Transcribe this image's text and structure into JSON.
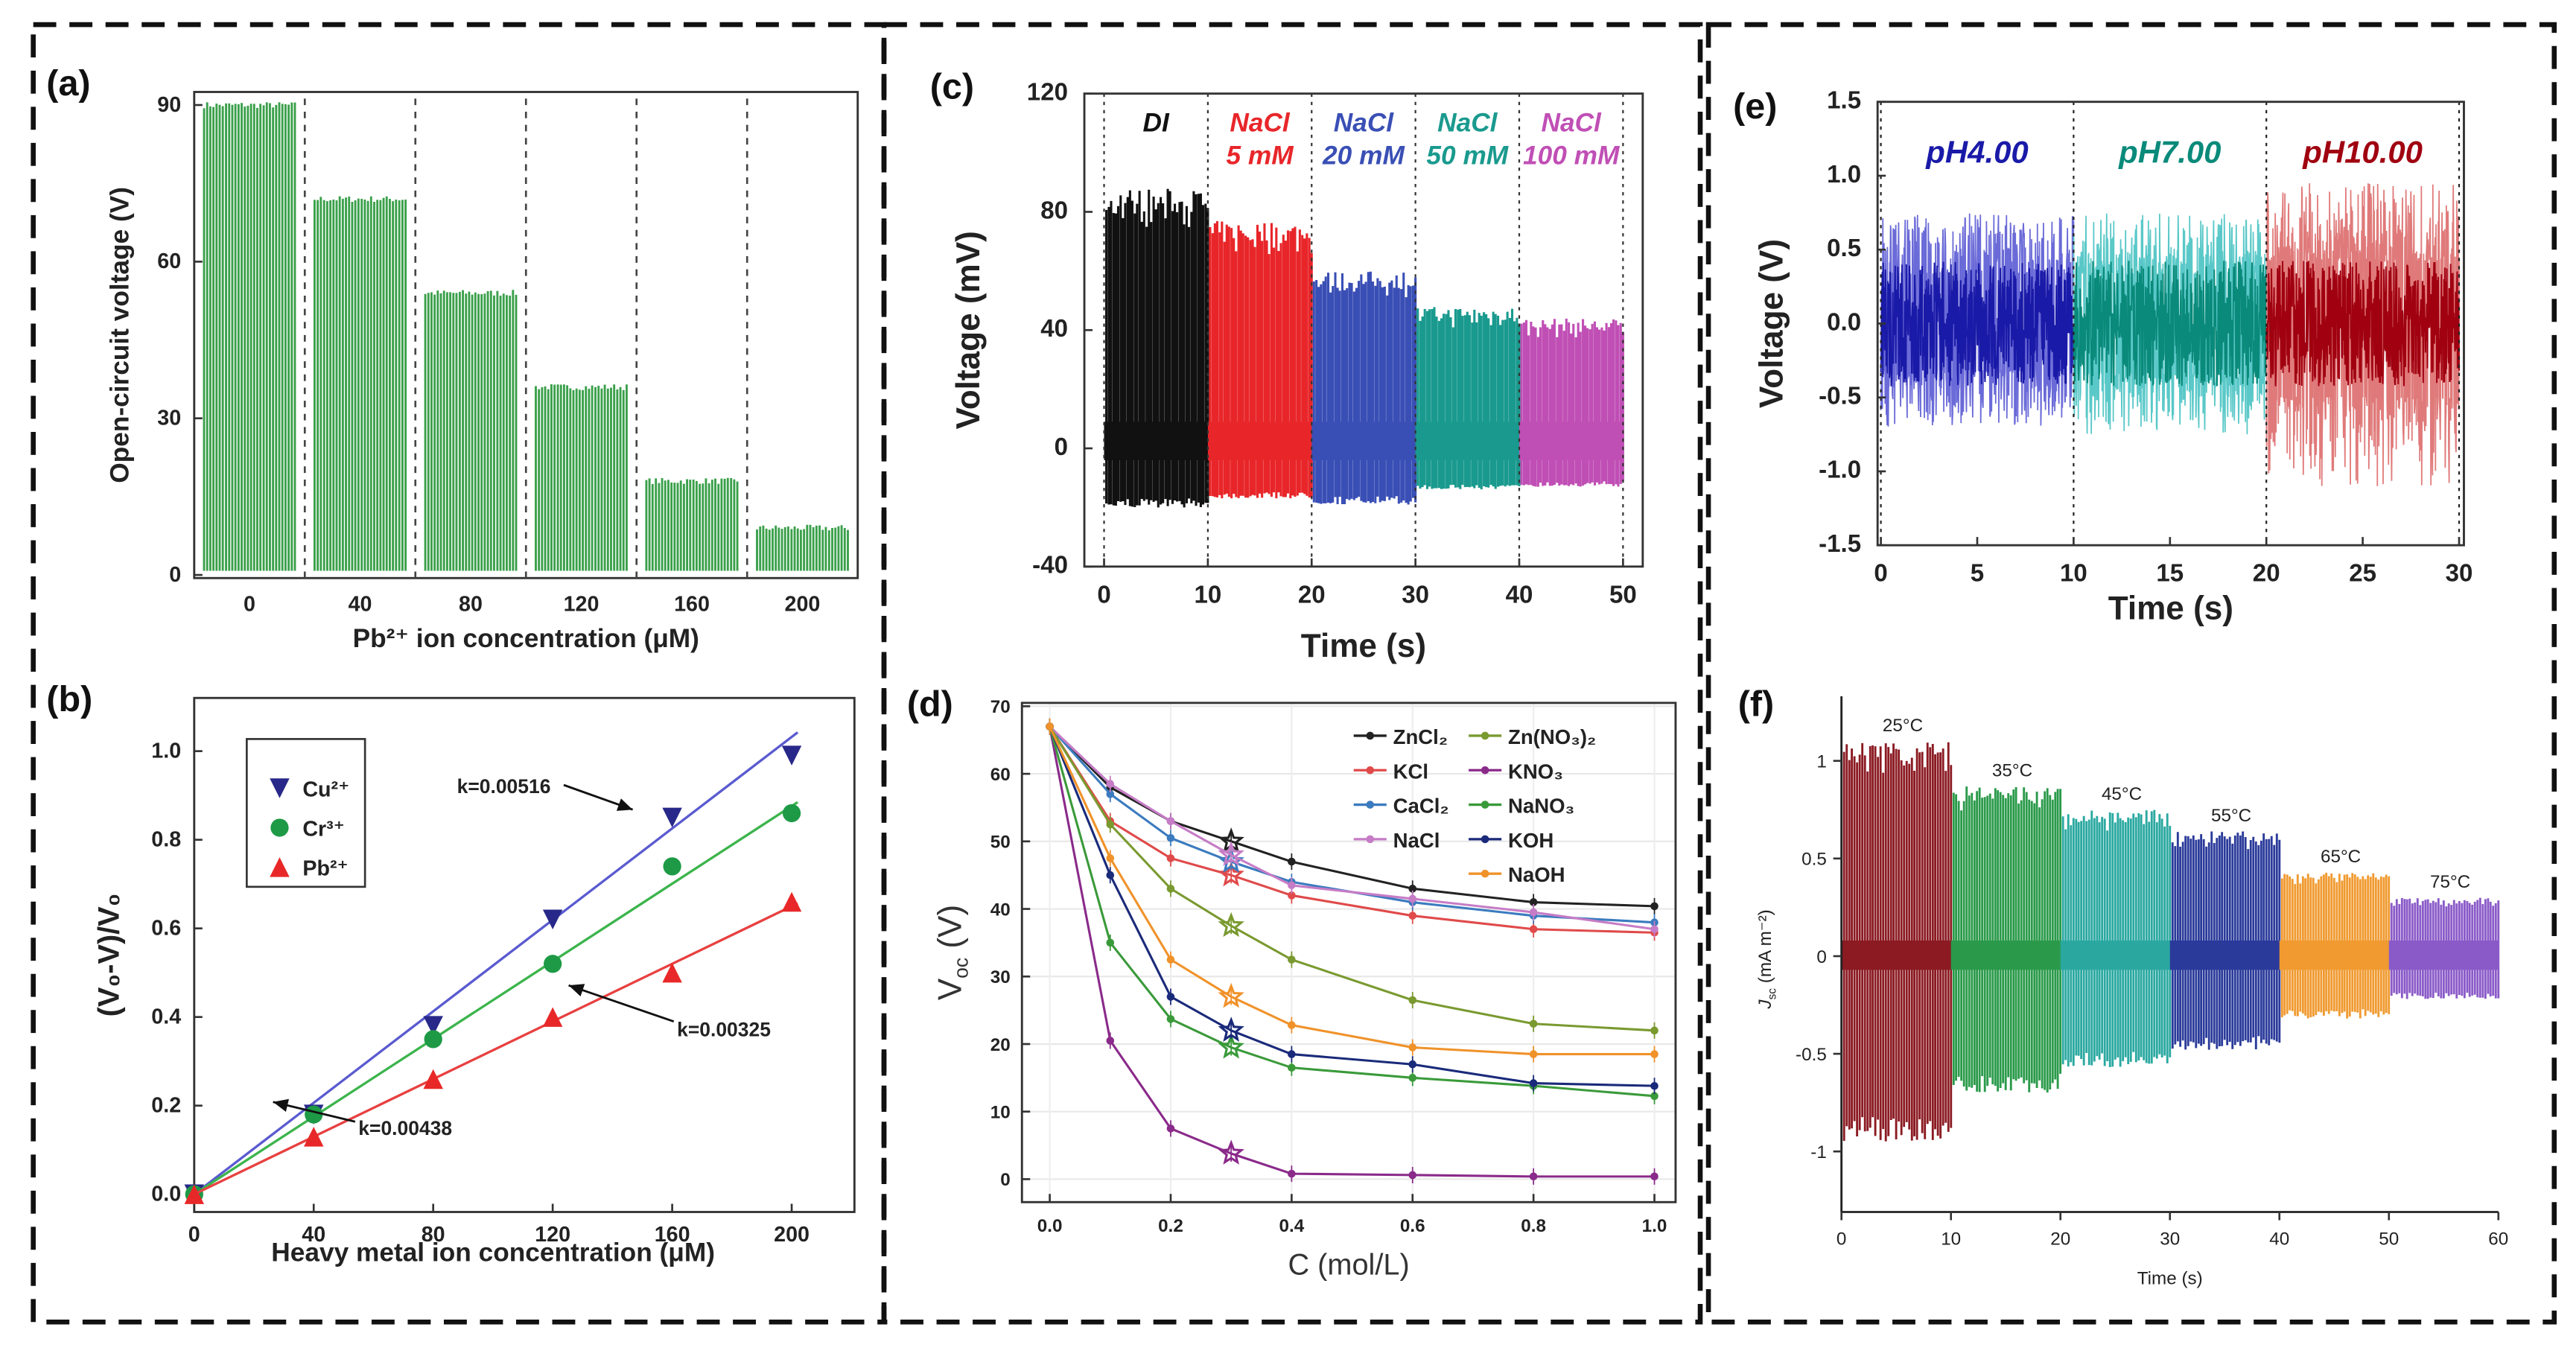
{
  "chart_data": [
    {
      "panel": "(a)",
      "type": "bar",
      "categories": [
        "0",
        "40",
        "80",
        "120",
        "160",
        "200"
      ],
      "values": [
        90,
        72,
        54,
        36,
        18,
        9
      ],
      "xlabel": "Pb²⁺ ion concentration (μM)",
      "ylabel": "Open-circuit voltage (V)",
      "yticks": [
        "0",
        "30",
        "60",
        "90"
      ],
      "ytick_values": [
        0,
        30,
        60,
        90
      ],
      "ylim": [
        -0.6,
        92.5
      ],
      "color": "#3aa04a"
    },
    {
      "panel": "(b)",
      "type": "scatter",
      "x": [
        0,
        40,
        80,
        120,
        160,
        200
      ],
      "series": [
        {
          "name": "Cu²⁺",
          "values": [
            0,
            0.18,
            0.38,
            0.62,
            0.85,
            0.99
          ],
          "fit_slope": 0.00516,
          "marker": "triangle-down",
          "color": "#28288a",
          "line_color": "#5a5ad0"
        },
        {
          "name": "Cr³⁺",
          "values": [
            0,
            0.18,
            0.35,
            0.52,
            0.74,
            0.86
          ],
          "fit_slope": 0.00438,
          "marker": "circle",
          "color": "#1e9a46",
          "line_color": "#3cb44c"
        },
        {
          "name": "Pb²⁺",
          "values": [
            0,
            0.13,
            0.26,
            0.4,
            0.5,
            0.66
          ],
          "fit_slope": 0.00325,
          "marker": "triangle-up",
          "color": "#e82828",
          "line_color": "#e84040"
        }
      ],
      "annotations": [
        "k=0.00516",
        "k=0.00325",
        "k=0.00438"
      ],
      "xlabel": "Heavy metal ion concentration (μM)",
      "ylabel": "(V₀-V)/V₀",
      "xticks": [
        "0",
        "40",
        "80",
        "120",
        "160",
        "200"
      ],
      "xtick_values": [
        0,
        40,
        80,
        120,
        160,
        200
      ],
      "yticks": [
        "0.0",
        "0.2",
        "0.4",
        "0.6",
        "0.8",
        "1.0"
      ],
      "ytick_values": [
        0,
        0.2,
        0.4,
        0.6,
        0.8,
        1.0
      ],
      "xlim": [
        0,
        221
      ],
      "ylim": [
        -0.04,
        1.12
      ],
      "legend": "top-left"
    },
    {
      "panel": "(c)",
      "type": "line",
      "xlabel": "Time (s)",
      "ylabel": "Voltage (mV)",
      "xticks": [
        "0",
        "10",
        "20",
        "30",
        "40",
        "50"
      ],
      "xtick_values": [
        0,
        10,
        20,
        30,
        40,
        50
      ],
      "yticks": [
        "-40",
        "0",
        "40",
        "80",
        "120"
      ],
      "ytick_values": [
        -40,
        0,
        40,
        80,
        120
      ],
      "xlim": [
        -1.9,
        51.9
      ],
      "ylim": [
        -40,
        120
      ],
      "segments": [
        {
          "label": [
            "DI"
          ],
          "t": [
            0,
            10
          ],
          "max": 88,
          "min": -20,
          "color": "#111111"
        },
        {
          "label": [
            "NaCl",
            "5 mM"
          ],
          "t": [
            10,
            20
          ],
          "max": 77,
          "min": -17,
          "color": "#e8262a"
        },
        {
          "label": [
            "NaCl",
            "20 mM"
          ],
          "t": [
            20,
            30
          ],
          "max": 60,
          "min": -19,
          "color": "#3a4fb5"
        },
        {
          "label": [
            "NaCl",
            "50 mM"
          ],
          "t": [
            30,
            40
          ],
          "max": 48,
          "min": -14,
          "color": "#1a9a8e"
        },
        {
          "label": [
            "NaCl",
            "100 mM"
          ],
          "t": [
            40,
            50
          ],
          "max": 44,
          "min": -13,
          "color": "#c04fb5"
        }
      ]
    },
    {
      "panel": "(d)",
      "type": "line",
      "x": [
        0,
        0.1,
        0.2,
        0.3,
        0.4,
        0.6,
        0.8,
        1.0
      ],
      "series": [
        {
          "name": "ZnCl₂",
          "values": [
            67,
            58,
            53,
            50,
            47,
            43,
            41,
            40.4
          ],
          "color": "#222222"
        },
        {
          "name": "KCl",
          "values": [
            67,
            53,
            47.5,
            45,
            42,
            39,
            37,
            36.5
          ],
          "color": "#e04a4a"
        },
        {
          "name": "CaCl₂",
          "values": [
            67,
            57,
            50.5,
            47,
            44,
            41,
            39,
            38
          ],
          "color": "#3b7bbf"
        },
        {
          "name": "NaCl",
          "values": [
            67,
            58.5,
            53,
            48,
            43.5,
            41.5,
            39.5,
            37
          ],
          "color": "#c67cc6"
        },
        {
          "name": "Zn(NO₃)₂",
          "values": [
            67,
            52.5,
            43,
            37.5,
            32.5,
            26.5,
            23,
            22
          ],
          "color": "#7a9a30"
        },
        {
          "name": "KNO₃",
          "values": [
            67,
            20.5,
            7.5,
            3.8,
            0.8,
            0.6,
            0.4,
            0.4
          ],
          "color": "#8a2a8a"
        },
        {
          "name": "NaNO₃",
          "values": [
            67,
            35,
            23.7,
            19.5,
            16.5,
            15,
            13.8,
            12.3
          ],
          "color": "#3a9a3a"
        },
        {
          "name": "KOH",
          "values": [
            67,
            45,
            27,
            22,
            18.5,
            17,
            14.2,
            13.8
          ],
          "color": "#1a2a7a"
        },
        {
          "name": "NaOH",
          "values": [
            67,
            47.5,
            32.5,
            27,
            22.8,
            19.5,
            18.5,
            18.5
          ],
          "color": "#f0922a"
        }
      ],
      "xlabel": "C (mol/L)",
      "ylabel_main": "V",
      "ylabel_sub": "oc",
      "ylabel_unit": " (V)",
      "xticks": [
        "0.0",
        "0.2",
        "0.4",
        "0.6",
        "0.8",
        "1.0"
      ],
      "xtick_values": [
        0,
        0.2,
        0.4,
        0.6,
        0.8,
        1.0
      ],
      "yticks": [
        "0",
        "10",
        "20",
        "30",
        "40",
        "50",
        "60",
        "70"
      ],
      "ytick_values": [
        0,
        10,
        20,
        30,
        40,
        50,
        60,
        70
      ],
      "xlim": [
        -0.046,
        1.035
      ],
      "ylim": [
        -3.4,
        70.5
      ],
      "grid": true,
      "legend": "top-right"
    },
    {
      "panel": "(e)",
      "type": "line",
      "xlabel": "Time (s)",
      "ylabel": "Voltage (V)",
      "xticks": [
        "0",
        "5",
        "10",
        "15",
        "20",
        "25",
        "30"
      ],
      "xtick_values": [
        0,
        5,
        10,
        15,
        20,
        25,
        30
      ],
      "yticks": [
        "-1.5",
        "-1.0",
        "-0.5",
        "0.0",
        "0.5",
        "1.0",
        "1.5"
      ],
      "ytick_values": [
        -1.5,
        -1,
        -0.5,
        0,
        0.5,
        1,
        1.5
      ],
      "xlim": [
        -0.17,
        30.25
      ],
      "ylim": [
        -1.5,
        1.5
      ],
      "segments": [
        {
          "label": "pH4.00",
          "t": [
            0,
            10
          ],
          "max": 0.75,
          "min": -0.7,
          "color": "#1a1aa8",
          "light_color": "#6a6ad8"
        },
        {
          "label": "pH7.00",
          "t": [
            10,
            20
          ],
          "max": 0.75,
          "min": -0.75,
          "color": "#0a8a7a",
          "light_color": "#5ac8c8"
        },
        {
          "label": "pH10.00",
          "t": [
            20,
            30
          ],
          "max": 0.95,
          "min": -1.1,
          "color": "#a00010",
          "light_color": "#e07a7a"
        }
      ]
    },
    {
      "panel": "(f)",
      "type": "line",
      "xlabel": "Time (s)",
      "ylabel_main": "J",
      "ylabel_sub": "sc",
      "ylabel_unit": " (mA m⁻²)",
      "xticks": [
        "0",
        "10",
        "20",
        "30",
        "40",
        "50",
        "60"
      ],
      "xtick_values": [
        0,
        10,
        20,
        30,
        40,
        50,
        60
      ],
      "yticks": [
        "-1",
        "-0.5",
        "0",
        "0.5",
        "1"
      ],
      "ytick_values": [
        -1,
        -0.5,
        0,
        0.5,
        1
      ],
      "xlim": [
        0,
        60
      ],
      "ylim": [
        -1.31,
        1.28
      ],
      "segments": [
        {
          "label": "25°C",
          "t": [
            0,
            10
          ],
          "max": 1.1,
          "min": -0.95,
          "color": "#8b1a22"
        },
        {
          "label": "35°C",
          "t": [
            10,
            20
          ],
          "max": 0.87,
          "min": -0.7,
          "color": "#2a9a4a"
        },
        {
          "label": "45°C",
          "t": [
            20,
            30
          ],
          "max": 0.75,
          "min": -0.57,
          "color": "#2aa8a0"
        },
        {
          "label": "55°C",
          "t": [
            30,
            40
          ],
          "max": 0.64,
          "min": -0.48,
          "color": "#2a3a9a"
        },
        {
          "label": "65°C",
          "t": [
            40,
            50
          ],
          "max": 0.43,
          "min": -0.32,
          "color": "#f09a30"
        },
        {
          "label": "75°C",
          "t": [
            50,
            60
          ],
          "max": 0.3,
          "min": -0.22,
          "color": "#8a5ac8"
        }
      ]
    }
  ]
}
